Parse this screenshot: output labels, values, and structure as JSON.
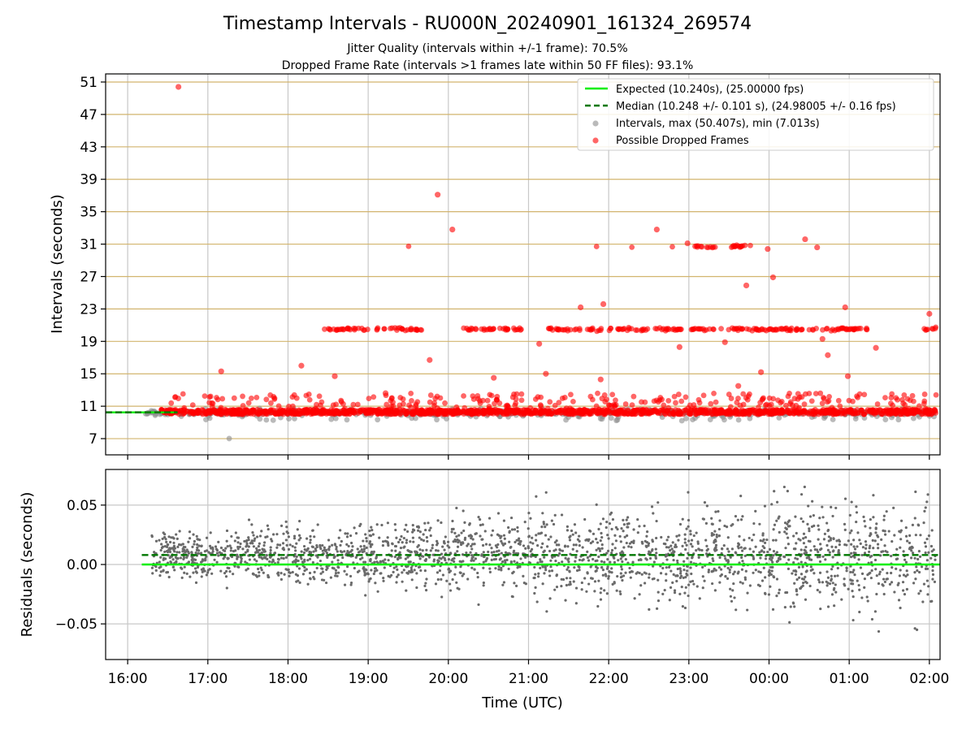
{
  "figure": {
    "title": "Timestamp Intervals - RU000N_20240901_161324_269574",
    "subtitle_1": "Jitter Quality (intervals within +/-1 frame): 70.5%",
    "subtitle_2": "Dropped Frame Rate (intervals >1 frames late within 50 FF files): 93.1%"
  },
  "colors": {
    "expected": "#00ee00",
    "median": "#007700",
    "intervals": "#8c8c8c",
    "dropped": "#ff0000",
    "residuals": "#6a6a6a",
    "hgrid_top": "#d2b46e",
    "grid": "#c8c8c8"
  },
  "chart_data": [
    {
      "type": "scatter",
      "ylabel": "Intervals (seconds)",
      "ylim": [
        5,
        52
      ],
      "y_ticks": [
        "7",
        "11",
        "15",
        "19",
        "23",
        "27",
        "31",
        "35",
        "39",
        "43",
        "47",
        "51"
      ],
      "legend_position": "top-right",
      "legend": [
        "Expected (10.240s), (25.00000 fps)",
        "Median (10.248 +/- 0.101 s), (24.98005 +/- 0.16 fps)",
        "Intervals, max (50.407s), min (7.013s)",
        "Possible Dropped Frames"
      ],
      "expected_interval": 10.24,
      "median_interval": 10.248,
      "max_interval": 50.407,
      "min_interval": 7.013,
      "x_start": "16:13",
      "x_end": "02:05",
      "dropped_frames": [
        [
          "16:38",
          50.4
        ],
        [
          "19:52",
          37.1
        ],
        [
          "20:03",
          32.8
        ],
        [
          "21:39",
          23.2
        ],
        [
          "21:56",
          23.6
        ],
        [
          "22:36",
          32.8
        ],
        [
          "22:59",
          31.1
        ],
        [
          "23:43",
          25.9
        ],
        [
          "23:59",
          30.4
        ],
        [
          "00:03",
          26.9
        ],
        [
          "00:27",
          31.6
        ],
        [
          "00:36",
          30.6
        ],
        [
          "00:57",
          23.2
        ],
        [
          "02:00",
          22.4
        ],
        [
          "21:08",
          18.7
        ],
        [
          "21:13",
          15.0
        ],
        [
          "21:54",
          14.3
        ],
        [
          "19:13",
          12.6
        ],
        [
          "17:10",
          15.3
        ],
        [
          "18:10",
          16.0
        ],
        [
          "18:35",
          14.7
        ],
        [
          "19:46",
          16.7
        ],
        [
          "20:34",
          14.5
        ],
        [
          "22:53",
          18.3
        ],
        [
          "23:27",
          18.9
        ],
        [
          "23:37",
          13.5
        ],
        [
          "23:54",
          15.2
        ],
        [
          "00:40",
          19.3
        ],
        [
          "00:44",
          17.3
        ],
        [
          "00:59",
          14.7
        ],
        [
          "01:20",
          18.2
        ]
      ],
      "dropped_frame_rows": [
        {
          "value": 20.5,
          "ranges": [
            [
              "18:25",
              "19:00"
            ],
            [
              "19:05",
              "19:40"
            ],
            [
              "20:10",
              "20:55"
            ],
            [
              "21:15",
              "21:55"
            ],
            [
              "22:00",
              "22:55"
            ],
            [
              "23:00",
              "01:15"
            ],
            [
              "01:55",
              "02:05"
            ]
          ]
        },
        {
          "value": 30.7,
          "ranges": [
            [
              "19:30",
              "19:31"
            ],
            [
              "21:50",
              "21:51"
            ],
            [
              "22:17",
              "22:18"
            ],
            [
              "22:47",
              "22:48"
            ],
            [
              "23:04",
              "23:20"
            ],
            [
              "23:30",
              "23:50"
            ]
          ]
        }
      ],
      "dense_band": {
        "ranges": [
          [
            "16:25",
            "18:00"
          ],
          [
            "18:00",
            "02:05"
          ]
        ],
        "low": 10.0,
        "high": 10.6
      }
    },
    {
      "type": "scatter",
      "xlabel": "Time (UTC)",
      "ylabel": "Residuals (seconds)",
      "ylim": [
        -0.08,
        0.08
      ],
      "y_ticks": [
        "0.05",
        "0.00",
        "−0.05"
      ],
      "x_ticks": [
        "16:00",
        "17:00",
        "18:00",
        "19:00",
        "20:00",
        "21:00",
        "22:00",
        "23:00",
        "00:00",
        "01:00",
        "02:00"
      ],
      "expected_residual": 0.0,
      "median_residual": 0.008,
      "x_start": "16:13",
      "x_end": "02:05"
    }
  ]
}
